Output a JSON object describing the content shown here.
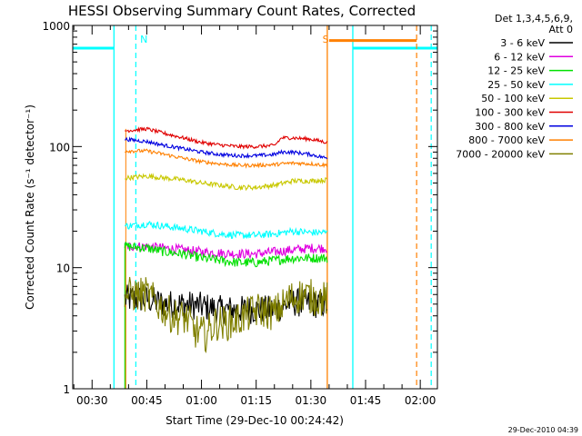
{
  "chart_data": {
    "type": "line",
    "title": "HESSI Observing Summary Count Rates, Corrected",
    "xlabel": "Start Time (29-Dec-10 00:24:42)",
    "ylabel": "Corrected Count Rate (s⁻¹ detector⁻¹)",
    "y_scale": "log",
    "ylim": [
      1,
      1000
    ],
    "xlim_minutes": [
      24.7,
      124.7
    ],
    "grid": false,
    "legend_position": "outside-right",
    "legend_header": [
      "Det 1,3,4,5,6,9,",
      "Att 0"
    ],
    "x_ticks": [
      {
        "minutes": 30,
        "label": "00:30"
      },
      {
        "minutes": 45,
        "label": "00:45"
      },
      {
        "minutes": 60,
        "label": "01:00"
      },
      {
        "minutes": 75,
        "label": "01:15"
      },
      {
        "minutes": 90,
        "label": "01:30"
      },
      {
        "minutes": 105,
        "label": "01:45"
      },
      {
        "minutes": 120,
        "label": "02:00"
      }
    ],
    "y_ticks": [
      {
        "value": 1,
        "label": "1"
      },
      {
        "value": 10,
        "label": "10"
      },
      {
        "value": 100,
        "label": "100"
      },
      {
        "value": 1000,
        "label": "1000"
      }
    ],
    "timestamp": "29-Dec-2010 04:39",
    "series": [
      {
        "name": "3 - 6 keV",
        "color": "#000000",
        "noise": 0.12,
        "points": [
          [
            39,
            5.5
          ],
          [
            45,
            5.5
          ],
          [
            50,
            5.0
          ],
          [
            55,
            5.0
          ],
          [
            60,
            4.8
          ],
          [
            65,
            4.5
          ],
          [
            70,
            4.5
          ],
          [
            75,
            4.5
          ],
          [
            80,
            4.5
          ],
          [
            85,
            5.2
          ],
          [
            90,
            5.0
          ],
          [
            94.5,
            5.0
          ]
        ]
      },
      {
        "name": "6 - 12 keV",
        "color": "#e000e0",
        "noise": 0.04,
        "points": [
          [
            39,
            15
          ],
          [
            45,
            15
          ],
          [
            50,
            14.5
          ],
          [
            55,
            14
          ],
          [
            60,
            13.5
          ],
          [
            65,
            13.2
          ],
          [
            70,
            13
          ],
          [
            75,
            13
          ],
          [
            80,
            13.5
          ],
          [
            85,
            14
          ],
          [
            90,
            14.5
          ],
          [
            94.5,
            14.5
          ]
        ]
      },
      {
        "name": "12 - 25 keV",
        "color": "#00e000",
        "noise": 0.04,
        "points": [
          [
            39,
            15
          ],
          [
            45,
            14.5
          ],
          [
            50,
            13.5
          ],
          [
            55,
            13
          ],
          [
            60,
            12
          ],
          [
            65,
            11.5
          ],
          [
            70,
            11
          ],
          [
            75,
            11
          ],
          [
            80,
            11.5
          ],
          [
            85,
            12
          ],
          [
            90,
            12
          ],
          [
            94.5,
            12
          ]
        ]
      },
      {
        "name": "25 - 50 keV",
        "color": "#00ffff",
        "noise": 0.03,
        "points": [
          [
            39,
            22
          ],
          [
            45,
            23
          ],
          [
            50,
            22
          ],
          [
            55,
            21
          ],
          [
            60,
            20
          ],
          [
            65,
            19
          ],
          [
            70,
            18.5
          ],
          [
            75,
            18.5
          ],
          [
            80,
            19
          ],
          [
            85,
            20
          ],
          [
            90,
            19.5
          ],
          [
            94.5,
            19.5
          ]
        ]
      },
      {
        "name": "50 - 100 keV",
        "color": "#c8c800",
        "noise": 0.02,
        "points": [
          [
            39,
            55
          ],
          [
            45,
            57
          ],
          [
            50,
            55
          ],
          [
            55,
            53
          ],
          [
            60,
            50
          ],
          [
            65,
            48
          ],
          [
            70,
            46
          ],
          [
            75,
            46
          ],
          [
            80,
            48
          ],
          [
            85,
            52
          ],
          [
            90,
            52
          ],
          [
            94.5,
            53
          ]
        ]
      },
      {
        "name": "100 - 300 keV",
        "color": "#e00000",
        "noise": 0.015,
        "points": [
          [
            39,
            135
          ],
          [
            45,
            140
          ],
          [
            50,
            128
          ],
          [
            55,
            118
          ],
          [
            60,
            108
          ],
          [
            65,
            103
          ],
          [
            70,
            100
          ],
          [
            75,
            100
          ],
          [
            80,
            102
          ],
          [
            82,
            118
          ],
          [
            85,
            118
          ],
          [
            90,
            115
          ],
          [
            94.5,
            108
          ]
        ]
      },
      {
        "name": "300 - 800 keV",
        "color": "#0000e0",
        "noise": 0.015,
        "points": [
          [
            39,
            115
          ],
          [
            45,
            110
          ],
          [
            50,
            102
          ],
          [
            55,
            96
          ],
          [
            60,
            90
          ],
          [
            65,
            86
          ],
          [
            70,
            84
          ],
          [
            75,
            84
          ],
          [
            80,
            86
          ],
          [
            82,
            90
          ],
          [
            85,
            90
          ],
          [
            90,
            86
          ],
          [
            94.5,
            80
          ]
        ]
      },
      {
        "name": "800 - 7000 keV",
        "color": "#ff8000",
        "noise": 0.015,
        "points": [
          [
            39,
            92
          ],
          [
            45,
            92
          ],
          [
            50,
            86
          ],
          [
            55,
            80
          ],
          [
            60,
            75
          ],
          [
            65,
            72
          ],
          [
            70,
            70
          ],
          [
            75,
            70
          ],
          [
            80,
            71
          ],
          [
            82,
            72
          ],
          [
            85,
            73
          ],
          [
            90,
            72
          ],
          [
            94.5,
            70
          ]
        ]
      },
      {
        "name": "7000 - 20000 keV",
        "color": "#808000",
        "noise": 0.15,
        "points": [
          [
            39,
            6
          ],
          [
            45,
            6
          ],
          [
            48,
            5
          ],
          [
            52,
            4
          ],
          [
            56,
            3.8
          ],
          [
            58,
            3
          ],
          [
            61,
            2.8
          ],
          [
            64,
            3.5
          ],
          [
            68,
            3.5
          ],
          [
            72,
            4
          ],
          [
            76,
            4.5
          ],
          [
            80,
            4.2
          ],
          [
            84,
            5.5
          ],
          [
            88,
            6
          ],
          [
            92,
            5.5
          ],
          [
            94.5,
            5.5
          ]
        ]
      }
    ],
    "regions": [
      {
        "kind": "night",
        "label": "N",
        "color": "#00ffff",
        "level": 650,
        "night_segments": [
          [
            24.7,
            36
          ],
          [
            101.5,
            124.7
          ]
        ],
        "boundaries": [
          36,
          101.5
        ],
        "dashed": [
          42,
          123
        ],
        "label_at": 43.2
      },
      {
        "kind": "saa",
        "label": "S",
        "color": "#ff8000",
        "level": 750,
        "saa_segments": [
          [
            95,
            119
          ]
        ],
        "boundaries": [
          94.5
        ],
        "dashed": [
          119
        ],
        "label_at": 93.2
      }
    ],
    "data_start_minutes": 39,
    "data_end_minutes": 94.5
  }
}
